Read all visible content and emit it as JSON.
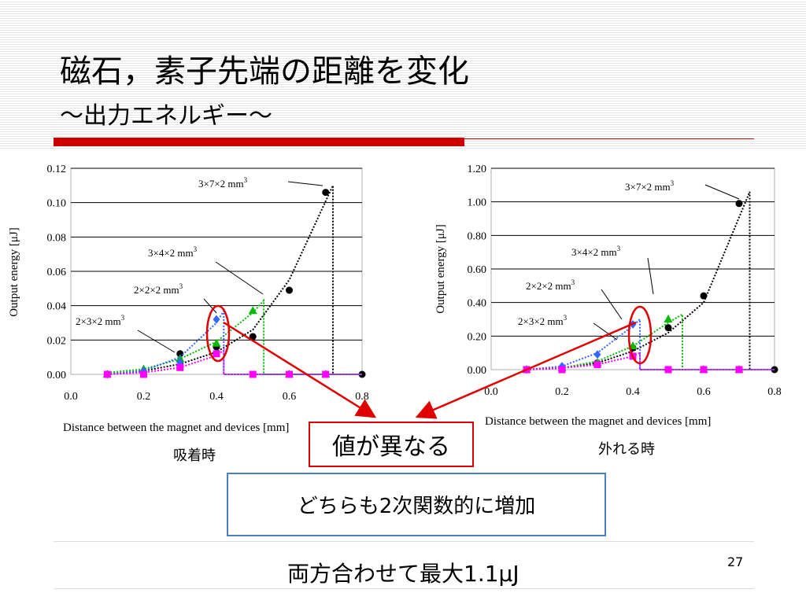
{
  "slide": {
    "title": "磁石，素子先端の距離を変化",
    "subtitle": "～出力エネルギー～",
    "captions": {
      "left": "吸着時",
      "right": "外れる時"
    },
    "callout_red": "値が異なる",
    "callout_blue": "どちらも2次関数的に増加",
    "bottom_text": "両方合わせて最大1.1μJ",
    "page_number": "27",
    "colors": {
      "accent_red": "#cc0000",
      "callout_blue_border": "#4a7ec9",
      "arrow_red": "#e00000"
    }
  },
  "chart_data": [
    {
      "type": "scatter",
      "xlabel": "Distance between the magnet and devices [mm]",
      "ylabel": "Output energy [μJ]",
      "xlim": [
        0,
        0.8
      ],
      "ylim": [
        0,
        0.12
      ],
      "xticks": [
        "0.0",
        "0.2",
        "0.4",
        "0.6",
        "0.8"
      ],
      "yticks": [
        "0.00",
        "0.02",
        "0.04",
        "0.06",
        "0.08",
        "0.10",
        "0.12"
      ],
      "grid": "horizontal",
      "series": [
        {
          "name": "3×7×2 mm3",
          "color": "#000000",
          "marker": "circle",
          "x": [
            0.1,
            0.2,
            0.3,
            0.4,
            0.5,
            0.6,
            0.7,
            0.8
          ],
          "y": [
            0.0,
            0.001,
            0.012,
            0.016,
            0.022,
            0.049,
            0.106,
            0.0
          ],
          "curve_x": [
            0.1,
            0.2,
            0.3,
            0.4,
            0.5,
            0.6,
            0.72
          ],
          "curve_y": [
            0.0,
            0.002,
            0.006,
            0.013,
            0.026,
            0.055,
            0.11
          ],
          "drop_x": 0.72
        },
        {
          "name": "3×4×2 mm3",
          "color": "#00bb00",
          "marker": "triangle",
          "x": [
            0.1,
            0.2,
            0.3,
            0.4,
            0.5,
            0.6,
            0.7
          ],
          "y": [
            0.0,
            0.003,
            0.009,
            0.018,
            0.037,
            0.0,
            0.0
          ],
          "curve_x": [
            0.1,
            0.2,
            0.3,
            0.4,
            0.5,
            0.53
          ],
          "curve_y": [
            0.001,
            0.003,
            0.009,
            0.019,
            0.036,
            0.043
          ],
          "drop_x": 0.53
        },
        {
          "name": "2×2×2 mm3",
          "color": "#3366ff",
          "marker": "diamond",
          "x": [
            0.1,
            0.2,
            0.3,
            0.4
          ],
          "y": [
            0.0,
            0.002,
            0.007,
            0.032
          ],
          "curve_x": [
            0.1,
            0.2,
            0.3,
            0.4,
            0.42
          ],
          "curve_y": [
            0.0,
            0.002,
            0.01,
            0.03,
            0.037
          ],
          "drop_x": 0.42
        },
        {
          "name": "2×3×2 mm3",
          "color": "#ff00ff",
          "marker": "square",
          "x": [
            0.1,
            0.2,
            0.3,
            0.4,
            0.5,
            0.6,
            0.7
          ],
          "y": [
            0.0,
            0.0,
            0.004,
            0.012,
            0.0,
            0.0,
            0.0
          ],
          "curve_x": [
            0.1,
            0.2,
            0.3,
            0.4,
            0.42
          ],
          "curve_y": [
            0.0,
            0.001,
            0.004,
            0.011,
            0.014
          ],
          "drop_x": 0.42
        }
      ],
      "annotations": [
        "3×7×2 mm3",
        "3×4×2 mm3",
        "2×2×2 mm3",
        "2×3×2 mm3"
      ]
    },
    {
      "type": "scatter",
      "xlabel": "Distance between the magnet and devices [mm]",
      "ylabel": "Output energy [μJ]",
      "xlim": [
        0,
        0.8
      ],
      "ylim": [
        0,
        1.2
      ],
      "xticks": [
        "0.0",
        "0.2",
        "0.4",
        "0.6",
        "0.8"
      ],
      "yticks": [
        "0.00",
        "0.20",
        "0.40",
        "0.60",
        "0.80",
        "1.00",
        "1.20"
      ],
      "grid": "horizontal",
      "series": [
        {
          "name": "3×7×2 mm3",
          "color": "#000000",
          "marker": "circle",
          "x": [
            0.1,
            0.2,
            0.3,
            0.4,
            0.5,
            0.6,
            0.7,
            0.8
          ],
          "y": [
            0.0,
            0.01,
            0.04,
            0.13,
            0.25,
            0.44,
            0.99,
            0.0
          ],
          "curve_x": [
            0.1,
            0.2,
            0.3,
            0.4,
            0.5,
            0.6,
            0.73
          ],
          "curve_y": [
            0.0,
            0.01,
            0.04,
            0.11,
            0.22,
            0.4,
            1.06
          ],
          "drop_x": 0.73
        },
        {
          "name": "3×4×2 mm3",
          "color": "#00bb00",
          "marker": "triangle",
          "x": [
            0.1,
            0.2,
            0.3,
            0.4,
            0.5,
            0.6,
            0.7
          ],
          "y": [
            0.0,
            0.01,
            0.04,
            0.14,
            0.3,
            0.0,
            0.0
          ],
          "curve_x": [
            0.1,
            0.2,
            0.3,
            0.4,
            0.5,
            0.54
          ],
          "curve_y": [
            0.0,
            0.01,
            0.05,
            0.14,
            0.28,
            0.33
          ],
          "drop_x": 0.54
        },
        {
          "name": "2×2×2 mm3",
          "color": "#3366ff",
          "marker": "diamond",
          "x": [
            0.1,
            0.2,
            0.3,
            0.4
          ],
          "y": [
            0.0,
            0.02,
            0.09,
            0.27
          ],
          "curve_x": [
            0.1,
            0.2,
            0.3,
            0.4,
            0.42
          ],
          "curve_y": [
            0.0,
            0.02,
            0.1,
            0.26,
            0.3
          ],
          "drop_x": 0.42
        },
        {
          "name": "2×3×2 mm3",
          "color": "#ff00ff",
          "marker": "square",
          "x": [
            0.1,
            0.2,
            0.3,
            0.4,
            0.5,
            0.6,
            0.7
          ],
          "y": [
            0.0,
            0.0,
            0.03,
            0.08,
            0.0,
            0.0,
            0.0
          ],
          "curve_x": [
            0.1,
            0.2,
            0.3,
            0.4,
            0.42
          ],
          "curve_y": [
            0.0,
            0.01,
            0.03,
            0.08,
            0.1
          ],
          "drop_x": 0.42
        }
      ],
      "annotations": [
        "3×7×2 mm3",
        "3×4×2 mm3",
        "2×2×2 mm3",
        "2×3×2 mm3"
      ]
    }
  ]
}
